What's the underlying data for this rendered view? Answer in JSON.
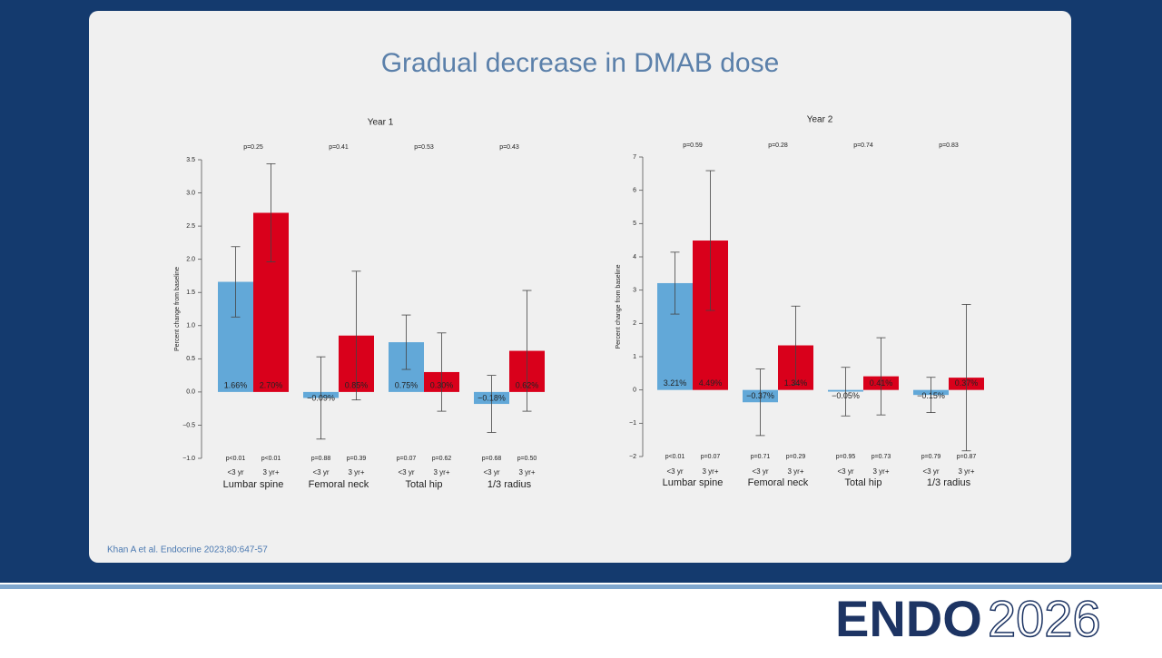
{
  "slide": {
    "title": "Gradual decrease in DMAB dose",
    "citation": "Khan A et al. Endocrine 2023;80:647-57",
    "logo": {
      "name": "ENDO",
      "year": "2026"
    }
  },
  "chart_data": [
    {
      "type": "bar",
      "title": "Year 1",
      "y_label": "Percent change from baseline",
      "categories": [
        "Lumbar spine",
        "Femoral neck",
        "Total hip",
        "1/3 radius"
      ],
      "group_pvalues": [
        "p=0.25",
        "p=0.41",
        "p=0.53",
        "p=0.43"
      ],
      "ylim": [
        -1.0,
        3.5
      ],
      "yticks": [
        {
          "value": -1.0,
          "label": "−1.0"
        },
        {
          "value": -0.5,
          "label": "−0.5"
        },
        {
          "value": 0,
          "label": "0.0"
        },
        0.5,
        {
          "value": 1,
          "label": "1.0"
        },
        1.5,
        {
          "value": 2,
          "label": "2.0"
        },
        2.5,
        {
          "value": 3,
          "label": "3.0"
        },
        3.5
      ],
      "series": [
        {
          "name": "<3 yr",
          "color": "#62a8d8",
          "values": [
            1.66,
            -0.09,
            0.75,
            -0.18
          ],
          "value_labels": [
            "1.66%",
            "−0.09%",
            "0.75%",
            "−0.18%"
          ],
          "errors": [
            0.53,
            0.62,
            0.41,
            0.43
          ],
          "pvalues": [
            "p<0.01",
            "p=0.88",
            "p=0.07",
            "p=0.68"
          ]
        },
        {
          "name": "3 yr+",
          "color": "#d9001b",
          "values": [
            2.7,
            0.85,
            0.3,
            0.62
          ],
          "value_labels": [
            "2.70%",
            "0.85%",
            "0.30%",
            "0.62%"
          ],
          "errors": [
            0.74,
            0.97,
            0.59,
            0.91
          ],
          "pvalues": [
            "p<0.01",
            "p=0.39",
            "p=0.62",
            "p=0.50"
          ]
        }
      ]
    },
    {
      "type": "bar",
      "title": "Year 2",
      "y_label": "Percent change from baseline",
      "categories": [
        "Lumbar spine",
        "Femoral neck",
        "Total hip",
        "1/3 radius"
      ],
      "group_pvalues": [
        "p=0.59",
        "p=0.28",
        "p=0.74",
        "p=0.83"
      ],
      "ylim": [
        -2,
        7
      ],
      "yticks": [
        {
          "value": -2,
          "label": "−2"
        },
        {
          "value": -1,
          "label": "−1"
        },
        0,
        1,
        2,
        3,
        4,
        5,
        6,
        7
      ],
      "series": [
        {
          "name": "<3 yr",
          "color": "#62a8d8",
          "values": [
            3.21,
            -0.37,
            -0.05,
            -0.15
          ],
          "value_labels": [
            "3.21%",
            "−0.37%",
            "−0.05%",
            "−0.15%"
          ],
          "errors": [
            0.93,
            1.0,
            0.73,
            0.53
          ],
          "pvalues": [
            "p<0.01",
            "p=0.71",
            "p=0.95",
            "p=0.79"
          ]
        },
        {
          "name": "3 yr+",
          "color": "#d9001b",
          "values": [
            4.49,
            1.34,
            0.41,
            0.37
          ],
          "value_labels": [
            "4.49%",
            "1.34%",
            "0.41%",
            "0.37%"
          ],
          "errors": [
            2.1,
            1.18,
            1.16,
            2.2
          ],
          "pvalues": [
            "p=0.07",
            "p=0.29",
            "p=0.73",
            "p=0.87"
          ]
        }
      ]
    }
  ]
}
